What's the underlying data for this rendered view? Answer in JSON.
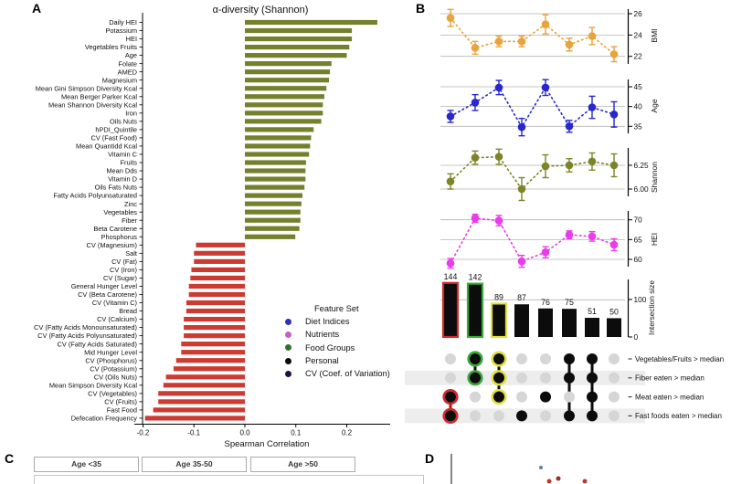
{
  "panel_labels": {
    "a": "A",
    "b": "B",
    "c": "C",
    "d": "D"
  },
  "chart_data": {
    "panel_a": {
      "type": "bar",
      "title": "α-diversity (Shannon)",
      "xlabel": "Spearman Correlation",
      "x_tick_labels": [
        "-0.2",
        "-0.1",
        "0.0",
        "0.1",
        "0.2"
      ],
      "x_tick_values": [
        -0.2,
        -0.1,
        0.0,
        0.1,
        0.2
      ],
      "xlim": [
        -0.22,
        0.28
      ],
      "bar_fill": {
        "positive": "#75802d",
        "negative": "#cc3b32"
      },
      "set_colors": {
        "diet": "#3030b8",
        "nutrient": "#c85fc8",
        "food": "#2f7030",
        "personal": "#0a0a0a",
        "cv": "#201044"
      },
      "legend": {
        "title": "Feature Set",
        "items": [
          {
            "label": "Diet Indices",
            "set": "diet"
          },
          {
            "label": "Nutrients",
            "set": "nutrient"
          },
          {
            "label": "Food Groups",
            "set": "food"
          },
          {
            "label": "Personal",
            "set": "personal"
          },
          {
            "label": "CV (Coef. of Variation)",
            "set": "cv"
          }
        ]
      },
      "bars": [
        {
          "label": "Daily HEI",
          "set": "diet",
          "value": 0.26
        },
        {
          "label": "Potassium",
          "set": "nutrient",
          "value": 0.21
        },
        {
          "label": "HEI",
          "set": "diet",
          "value": 0.21
        },
        {
          "label": "Vegetables Fruits",
          "set": "food",
          "value": 0.205
        },
        {
          "label": "Age",
          "set": "personal",
          "value": 0.2
        },
        {
          "label": "Folate",
          "set": "nutrient",
          "value": 0.17
        },
        {
          "label": "AMED",
          "set": "diet",
          "value": 0.167
        },
        {
          "label": "Magnesium",
          "set": "nutrient",
          "value": 0.165
        },
        {
          "label": "Mean Gini Simpson Diversity Kcal",
          "set": "diet",
          "value": 0.16
        },
        {
          "label": "Mean Berger Parker Kcal",
          "set": "diet",
          "value": 0.156
        },
        {
          "label": "Mean Shannon Diversity Kcal",
          "set": "diet",
          "value": 0.153
        },
        {
          "label": "Iron",
          "set": "nutrient",
          "value": 0.153
        },
        {
          "label": "Oils Nuts",
          "set": "food",
          "value": 0.15
        },
        {
          "label": "hPDI_Quintile",
          "set": "nutrient",
          "value": 0.135
        },
        {
          "label": "CV (Fast Food)",
          "set": "cv",
          "value": 0.13
        },
        {
          "label": "Mean Quantidd Kcal",
          "set": "diet",
          "value": 0.128
        },
        {
          "label": "Vitamin C",
          "set": "nutrient",
          "value": 0.126
        },
        {
          "label": "Fruits",
          "set": "food",
          "value": 0.12
        },
        {
          "label": "Mean Dds",
          "set": "diet",
          "value": 0.119
        },
        {
          "label": "Vitamin D",
          "set": "nutrient",
          "value": 0.119
        },
        {
          "label": "Oils Fats Nuts",
          "set": "food",
          "value": 0.117
        },
        {
          "label": "Fatty Acids Polyunsaturated",
          "set": "nutrient",
          "value": 0.113
        },
        {
          "label": "Zinc",
          "set": "nutrient",
          "value": 0.111
        },
        {
          "label": "Vegetables",
          "set": "food",
          "value": 0.109
        },
        {
          "label": "Fiber",
          "set": "nutrient",
          "value": 0.109
        },
        {
          "label": "Beta Carotene",
          "set": "nutrient",
          "value": 0.107
        },
        {
          "label": "Phosphorus",
          "set": "nutrient",
          "value": 0.099
        },
        {
          "label": "CV (Magnesium)",
          "set": "cv",
          "value": -0.096
        },
        {
          "label": "Salt",
          "set": "nutrient",
          "value": -0.1
        },
        {
          "label": "CV (Fat)",
          "set": "cv",
          "value": -0.1
        },
        {
          "label": "CV (Iron)",
          "set": "cv",
          "value": -0.105
        },
        {
          "label": "CV (Sugar)",
          "set": "cv",
          "value": -0.107
        },
        {
          "label": "General Hunger Level",
          "set": "nutrient",
          "value": -0.11
        },
        {
          "label": "CV (Beta Carotene)",
          "set": "cv",
          "value": -0.11
        },
        {
          "label": "CV (Vitamin C)",
          "set": "cv",
          "value": -0.115
        },
        {
          "label": "Bread",
          "set": "food",
          "value": -0.115
        },
        {
          "label": "CV (Calcium)",
          "set": "cv",
          "value": -0.12
        },
        {
          "label": "CV (Fatty Acids Monounsaturated)",
          "set": "cv",
          "value": -0.12
        },
        {
          "label": "CV (Fatty Acids Polyunsaturated)",
          "set": "cv",
          "value": -0.12
        },
        {
          "label": "CV (Fatty Acids Saturated)",
          "set": "cv",
          "value": -0.125
        },
        {
          "label": "Mid Hunger Level",
          "set": "nutrient",
          "value": -0.125
        },
        {
          "label": "CV (Phosphorus)",
          "set": "cv",
          "value": -0.135
        },
        {
          "label": "CV (Potassium)",
          "set": "cv",
          "value": -0.14
        },
        {
          "label": "CV (Oils Nuts)",
          "set": "cv",
          "value": -0.155
        },
        {
          "label": "Mean Simpson Diversity Kcal",
          "set": "diet",
          "value": -0.16
        },
        {
          "label": "CV (Vegetables)",
          "set": "cv",
          "value": -0.17
        },
        {
          "label": "CV (Fruits)",
          "set": "cv",
          "value": -0.17
        },
        {
          "label": "Fast Food",
          "set": "food",
          "value": -0.18
        },
        {
          "label": "Defecation Frequency",
          "set": "nutrient",
          "value": -0.196
        }
      ]
    },
    "panel_b": {
      "type": "upset",
      "subplots": [
        {
          "ylabel": "BMI",
          "color": "#e8a33d",
          "tick_labels": [
            "26",
            "24",
            "22"
          ],
          "tick_values": [
            26,
            24,
            22
          ],
          "values": [
            25.6,
            22.8,
            23.4,
            23.4,
            25.0,
            23.1,
            23.9,
            22.2
          ],
          "errors": [
            0.8,
            0.6,
            0.5,
            0.5,
            0.9,
            0.6,
            0.8,
            0.7
          ]
        },
        {
          "ylabel": "Age",
          "color": "#2727cc",
          "tick_labels": [
            "45",
            "40",
            "35"
          ],
          "tick_values": [
            45,
            40,
            35
          ],
          "values": [
            37.5,
            41.0,
            44.8,
            34.8,
            44.8,
            35.0,
            39.8,
            38.0
          ],
          "errors": [
            1.5,
            2.0,
            1.8,
            2.2,
            2.0,
            1.5,
            2.8,
            3.2
          ]
        },
        {
          "ylabel": "Shannon",
          "color": "#7d8428",
          "tick_labels": [
            "6.25",
            "6.00"
          ],
          "tick_values": [
            6.25,
            6.0
          ],
          "values": [
            6.08,
            6.33,
            6.34,
            6.0,
            6.24,
            6.25,
            6.29,
            6.25
          ],
          "errors": [
            0.08,
            0.07,
            0.08,
            0.12,
            0.12,
            0.07,
            0.09,
            0.12
          ]
        },
        {
          "ylabel": "HEI",
          "color": "#ea3cea",
          "tick_labels": [
            "70",
            "65",
            "60"
          ],
          "tick_values": [
            70,
            65,
            60
          ],
          "values": [
            59.0,
            70.4,
            69.8,
            59.5,
            61.8,
            66.2,
            65.8,
            63.7
          ],
          "errors": [
            1.2,
            1.0,
            1.3,
            1.5,
            1.4,
            1.0,
            1.2,
            1.5
          ]
        }
      ],
      "intersection": {
        "ylabel": "Intersection size",
        "tick_labels": [
          "100",
          "0"
        ],
        "tick_values": [
          100,
          0
        ],
        "values": [
          144,
          142,
          89,
          87,
          76,
          75,
          51,
          50
        ],
        "outline_colors": [
          "#cf2b2b",
          "#3aa83a",
          "#e0e040",
          null,
          null,
          null,
          null,
          null
        ]
      },
      "matrix": {
        "row_labels": [
          "Vegetables/Fruits > median",
          "Fiber eaten > median",
          "Meat eaten > median",
          "Fast foods eaten > median"
        ],
        "columns": [
          [
            2,
            3
          ],
          [
            0,
            1
          ],
          [
            0,
            1,
            2
          ],
          [
            3
          ],
          [
            2
          ],
          [
            0,
            1,
            3
          ],
          [
            0,
            1,
            2,
            3
          ],
          []
        ],
        "highlight_colors": [
          "#cf2b2b",
          "#3aa83a",
          "#e0e040",
          null,
          null,
          null,
          null,
          null
        ],
        "inactive_dot_color": "#d6d6d6",
        "active_dot_color": "#0c0c0c"
      }
    },
    "panel_c": {
      "type": "facet-headers",
      "facets": [
        {
          "label": "Age <35"
        },
        {
          "label": "Age 35-50"
        },
        {
          "label": "Age >50"
        }
      ]
    },
    "panel_d": {
      "type": "scatter",
      "points": [
        {
          "x": 592,
          "y": 512,
          "r": 2.0,
          "color": "#5e81a8"
        },
        {
          "x": 601,
          "y": 527,
          "r": 2.5,
          "color": "#c2392b"
        },
        {
          "x": 611,
          "y": 524,
          "r": 2.5,
          "color": "#9c2f25"
        },
        {
          "x": 640,
          "y": 527,
          "r": 2.5,
          "color": "#c2392b"
        }
      ]
    }
  }
}
